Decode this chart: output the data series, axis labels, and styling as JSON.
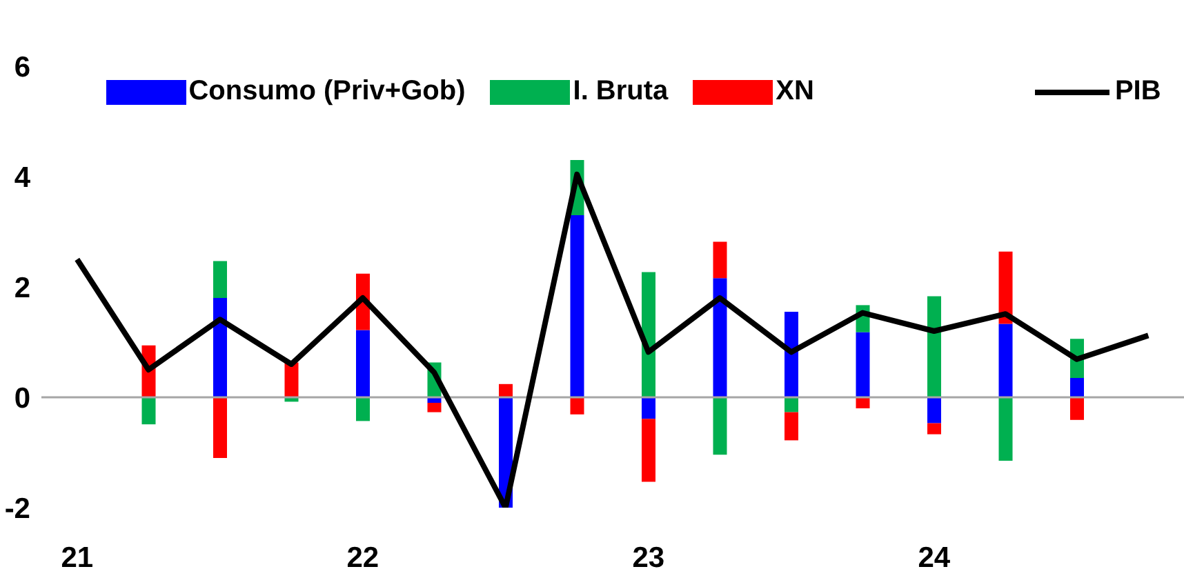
{
  "chart_data": {
    "type": "bar",
    "stacked": true,
    "categories": [
      "21",
      null,
      null,
      null,
      "22",
      null,
      null,
      null,
      "23",
      null,
      null,
      null,
      "24",
      null,
      null,
      null
    ],
    "series": [
      {
        "name": "Consumo (Priv+Gob)",
        "color": "#0000ff",
        "values": [
          null,
          0,
          1.8,
          0,
          1.22,
          -0.1,
          -2.0,
          3.3,
          -0.39,
          2.16,
          1.55,
          1.18,
          -0.47,
          1.33,
          0.35,
          null
        ]
      },
      {
        "name": "I. Bruta",
        "color": "#00b050",
        "values": [
          null,
          -0.49,
          0.67,
          -0.08,
          -0.43,
          0.63,
          0,
          1.0,
          2.27,
          -1.04,
          -0.27,
          0.49,
          1.83,
          -1.15,
          0.71,
          null
        ]
      },
      {
        "name": "XN",
        "color": "#ff0000",
        "values": [
          null,
          0.94,
          -1.1,
          0.63,
          1.02,
          -0.17,
          0.24,
          -0.31,
          -1.14,
          0.66,
          -0.51,
          -0.2,
          -0.2,
          1.31,
          -0.41,
          null
        ]
      },
      {
        "name": "PIB",
        "type": "line",
        "color": "#000000",
        "values": [
          2.5,
          0.5,
          1.41,
          0.6,
          1.8,
          0.45,
          -2.0,
          4.04,
          0.82,
          1.8,
          0.82,
          1.53,
          1.2,
          1.51,
          0.69,
          1.12
        ]
      }
    ],
    "ylim": [
      -2,
      6
    ],
    "yticks": [
      -2,
      0,
      2,
      4,
      6
    ],
    "ref_lines": [
      {
        "axis": "y",
        "value": 0,
        "color": "#a6a6a6"
      }
    ],
    "grid": false,
    "legend": "top",
    "marker": "none"
  }
}
